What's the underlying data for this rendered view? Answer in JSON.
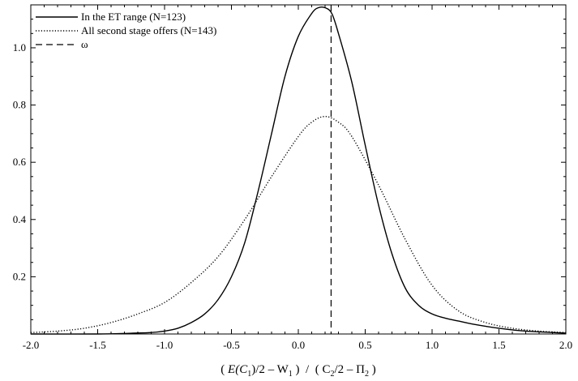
{
  "chart_data": {
    "type": "line",
    "xlim": [
      -2.0,
      2.0
    ],
    "ylim": [
      0.0,
      1.15
    ],
    "x_ticks": [
      -2.0,
      -1.5,
      -1.0,
      -0.5,
      0.0,
      0.5,
      1.0,
      1.5,
      2.0
    ],
    "x_tick_labels": [
      "-2.0",
      "-1.5",
      "-1.0",
      "-0.5",
      "0.0",
      "0.5",
      "1.0",
      "1.5",
      "2.0"
    ],
    "y_ticks": [
      0.2,
      0.4,
      0.6,
      0.8,
      1.0
    ],
    "y_tick_labels": [
      "0.2",
      "0.4",
      "0.6",
      "0.8",
      "1.0"
    ],
    "xlabel": {
      "open": "( ",
      "E": "E",
      "C1": "(C",
      "sub1": "1",
      "mid1": ")/2 – W",
      "sub2": "1",
      "close1": " )  /  ( C",
      "sub3": "2",
      "mid2": "/2 – Π",
      "sub4": "2",
      "close2": " )"
    },
    "legend_position": "top-left",
    "grid": false,
    "series": [
      {
        "name": "In the ET range (N=123)",
        "style": "solid",
        "x": [
          -2.0,
          -1.5,
          -1.3,
          -1.1,
          -1.0,
          -0.9,
          -0.8,
          -0.7,
          -0.6,
          -0.5,
          -0.4,
          -0.3,
          -0.2,
          -0.1,
          0.0,
          0.1,
          0.15,
          0.2,
          0.25,
          0.3,
          0.4,
          0.5,
          0.6,
          0.7,
          0.8,
          0.9,
          1.0,
          1.1,
          1.2,
          1.3,
          1.5,
          1.7,
          2.0
        ],
        "y": [
          0.0,
          0.0,
          0.002,
          0.005,
          0.01,
          0.02,
          0.04,
          0.07,
          0.12,
          0.2,
          0.32,
          0.5,
          0.7,
          0.9,
          1.04,
          1.12,
          1.14,
          1.14,
          1.12,
          1.05,
          0.88,
          0.66,
          0.45,
          0.28,
          0.16,
          0.1,
          0.07,
          0.055,
          0.045,
          0.035,
          0.02,
          0.01,
          0.003
        ]
      },
      {
        "name": "All second stage offers (N=143)",
        "style": "dotted",
        "x": [
          -2.0,
          -1.8,
          -1.6,
          -1.4,
          -1.2,
          -1.0,
          -0.8,
          -0.6,
          -0.4,
          -0.2,
          0.0,
          0.1,
          0.2,
          0.3,
          0.4,
          0.6,
          0.8,
          1.0,
          1.2,
          1.4,
          1.6,
          1.8,
          2.0
        ],
        "y": [
          0.005,
          0.01,
          0.02,
          0.04,
          0.07,
          0.11,
          0.18,
          0.27,
          0.4,
          0.55,
          0.69,
          0.74,
          0.76,
          0.74,
          0.69,
          0.52,
          0.33,
          0.17,
          0.08,
          0.04,
          0.02,
          0.01,
          0.005
        ]
      }
    ],
    "reference_lines": [
      {
        "name": "ω",
        "style": "dashed",
        "orientation": "vertical",
        "x": 0.245
      }
    ]
  }
}
